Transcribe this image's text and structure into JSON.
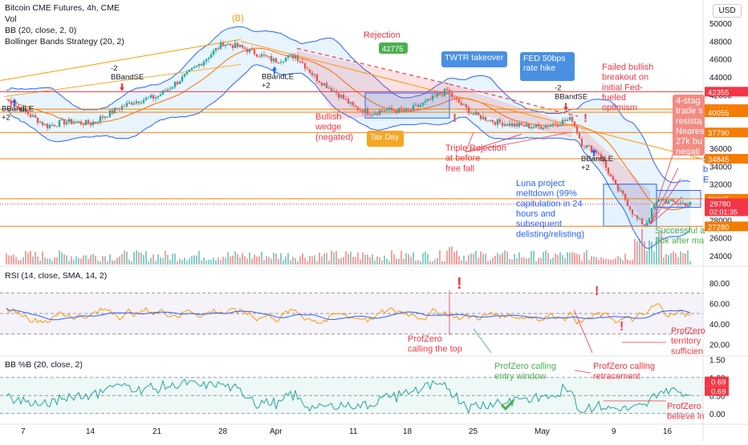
{
  "legends": {
    "title": "Bitcoin CME Futures, 4h, CME",
    "vol": "Vol",
    "bb": "BB (20, close, 2, 0)",
    "bbs": "Bollinger Bands Strategy (20, 2)",
    "rsi": "RSI (14, close, SMA, 14, 2)",
    "pctb": "BB %B (20, close, 2)"
  },
  "currency_button": "USD",
  "chart_data": [
    {
      "type": "line",
      "pane": "price",
      "title": "Bitcoin CME Futures, 4h, CME",
      "x_tick_labels": [
        "7",
        "14",
        "21",
        "28",
        "Apr",
        "11",
        "18",
        "25",
        "May",
        "9",
        "16"
      ],
      "y_tick_labels": [
        "50000",
        "48000",
        "46000",
        "44000",
        "42000",
        "40000",
        "38000",
        "36000",
        "34000",
        "32000",
        "30000",
        "28000",
        "26000",
        "24000"
      ],
      "ylim": [
        23000,
        51000
      ],
      "price_anchors": [
        [
          "7",
          41500
        ],
        [
          "9",
          38500
        ],
        [
          "11",
          39000
        ],
        [
          "14",
          38800
        ],
        [
          "16",
          40500
        ],
        [
          "18",
          41200
        ],
        [
          "21",
          41800
        ],
        [
          "24",
          44200
        ],
        [
          "26",
          46000
        ],
        [
          "28",
          47800
        ],
        [
          "30",
          47200
        ],
        [
          "Apr",
          45800
        ],
        [
          "Apr 3",
          46400
        ],
        [
          "Apr 6",
          43800
        ],
        [
          "Apr 9",
          42200
        ],
        [
          "11",
          40600
        ],
        [
          "Apr 13",
          40000
        ],
        [
          "Apr 15",
          40300
        ],
        [
          "18",
          40200
        ],
        [
          "Apr 20",
          41200
        ],
        [
          "Apr 22",
          42500
        ],
        [
          "Apr 23",
          41600
        ],
        [
          "25",
          39800
        ],
        [
          "Apr 27",
          39000
        ],
        [
          "Apr 29",
          38600
        ],
        [
          "May",
          38400
        ],
        [
          "May 4",
          39300
        ],
        [
          "May 5",
          36500
        ],
        [
          "May 7",
          35500
        ],
        [
          "9",
          31500
        ],
        [
          "May 10",
          30500
        ],
        [
          "May 11",
          28200
        ],
        [
          "May 12",
          27400
        ],
        [
          "May 13",
          29600
        ],
        [
          "May 14",
          30400
        ],
        [
          "16",
          30000
        ],
        [
          "May 18",
          29780
        ]
      ],
      "horizontal_levels": [
        {
          "label": "42355",
          "value": 42355,
          "color": "#f23645"
        },
        {
          "label": "40400",
          "value": 40400,
          "color": "#f57c00"
        },
        {
          "label": "40055",
          "value": 40055,
          "color": "#f57c00"
        },
        {
          "label": "37790",
          "value": 37790,
          "color": "#f57c00"
        },
        {
          "label": "34845",
          "value": 34845,
          "color": "#f57c00"
        },
        {
          "label": "30365",
          "value": 30365,
          "color": "#f57c00"
        },
        {
          "label": "27280",
          "value": 27280,
          "color": "#f57c00"
        }
      ],
      "last_price": {
        "label": "29780",
        "countdown": "02:01:35",
        "value": 29780
      },
      "strategy_signals": [
        {
          "text": "BBandLE\n+2",
          "x": "8",
          "side": "long"
        },
        {
          "text": "-2\nBBandSE",
          "x": "17",
          "side": "short"
        },
        {
          "text": "BBandLE\n+2",
          "x": "Apr",
          "side": "long"
        },
        {
          "text": "-2\nBBandSE",
          "x": "May",
          "side": "short"
        },
        {
          "text": "BBandLE\n+2",
          "x": "May 7",
          "side": "long"
        }
      ],
      "annotations": [
        {
          "text": "(B)"
        },
        {
          "text": "Rejection"
        },
        {
          "text": "42775"
        },
        {
          "text": "Bullish\nwedge\n(negated)"
        },
        {
          "text": "Tax Day"
        },
        {
          "text": "TWTR takeover"
        },
        {
          "text": "FED 50bps\nrate hike"
        },
        {
          "text": "Failed bullish\nbreakout on\ninitial Fed-\nfueled\noptimism"
        },
        {
          "text": "Triple Rejection\nat before\nfree fall"
        },
        {
          "text": "Luna project\nmeltdown (99%\ncapitulation in 24\nhours and\nsubsequent\ndelisting/relisting)"
        },
        {
          "text": "Successful a\n30k after ma"
        },
        {
          "text": "4-stag\ntrade s\nresista\nNeares\n27k bu\nnegati"
        },
        {
          "text": "S\nb\nE"
        }
      ]
    },
    {
      "type": "line",
      "pane": "rsi",
      "title": "RSI (14, close, SMA, 14, 2)",
      "y_tick_labels": [
        "80.00",
        "60.00",
        "40.00",
        "20.00"
      ],
      "ylim": [
        10,
        90
      ],
      "bands": [
        70,
        50,
        30
      ],
      "annotations": [
        {
          "text": "ProfZero\ncalling the top"
        },
        {
          "text": "ProfZero\nterritory\nsufficien"
        }
      ]
    },
    {
      "type": "line",
      "pane": "pctb",
      "title": "BB %B (20, close, 2)",
      "y_tick_labels": [
        "1.50",
        "1.00",
        "0.50",
        "0.00"
      ],
      "ylim": [
        -0.25,
        1.55
      ],
      "current_values": [
        "0.69",
        "0.69"
      ],
      "annotations": [
        {
          "text": "ProfZero calling\nentry window"
        },
        {
          "text": "ProfZero calling\nretracement"
        },
        {
          "text": "ProfZero\nbelieve in"
        }
      ]
    }
  ]
}
